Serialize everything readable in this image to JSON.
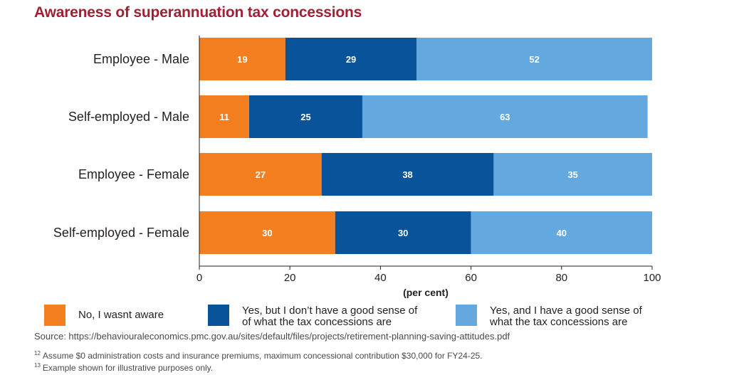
{
  "title": "Awareness of superannuation tax concessions",
  "chart_data": {
    "type": "bar",
    "orientation": "horizontal",
    "stacked": true,
    "categories": [
      "Employee - Male",
      "Self-employed - Male",
      "Employee - Female",
      "Self-employed - Female"
    ],
    "series": [
      {
        "name": "No, I wasnt aware",
        "color": "#f47f20",
        "values": [
          19,
          11,
          27,
          30
        ]
      },
      {
        "name": "Yes, but I don’t have a good sense of what the tax concessions are",
        "color": "#08539a",
        "values": [
          29,
          25,
          38,
          30
        ]
      },
      {
        "name": "Yes, and I have a good sense of what the tax concessions are",
        "color": "#63a8df",
        "values": [
          52,
          63,
          35,
          40
        ]
      }
    ],
    "xlabel": "(per cent)",
    "xlim": [
      0,
      100
    ],
    "xticks": [
      0,
      20,
      40,
      60,
      80,
      100
    ],
    "grid": false,
    "legend_position": "bottom"
  },
  "legend": [
    {
      "label": "No, I wasnt aware",
      "color": "#f47f20"
    },
    {
      "label": "Yes, but I don’t have a good sense of\nof what the tax concessions are",
      "color": "#08539a"
    },
    {
      "label": "Yes, and I have a good sense of\nwhat the tax concessions are",
      "color": "#63a8df"
    }
  ],
  "source": "Source: https://behaviouraleconomics.pmc.gov.au/sites/default/files/projects/retirement-planning-saving-attitudes.pdf",
  "footnotes": [
    {
      "mark": "12",
      "text": "Assume $0 administration costs and insurance premiums, maximum concessional contribution $30,000 for FY24-25."
    },
    {
      "mark": "13",
      "text": "Example shown for illustrative purposes only."
    }
  ]
}
